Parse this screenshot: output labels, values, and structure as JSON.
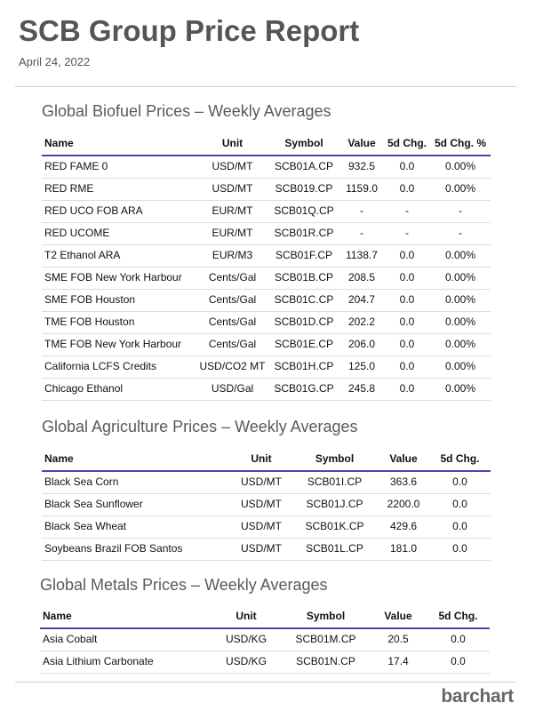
{
  "header": {
    "title": "SCB Group Price Report",
    "date": "April 24, 2022"
  },
  "biofuel": {
    "title": "Global Biofuel Prices – Weekly Averages",
    "columns": [
      "Name",
      "Unit",
      "Symbol",
      "Value",
      "5d Chg.",
      "5d Chg. %"
    ],
    "rows": [
      [
        "RED FAME 0",
        "USD/MT",
        "SCB01A.CP",
        "932.5",
        "0.0",
        "0.00%"
      ],
      [
        "RED RME",
        "USD/MT",
        "SCB019.CP",
        "1159.0",
        "0.0",
        "0.00%"
      ],
      [
        "RED UCO FOB ARA",
        "EUR/MT",
        "SCB01Q.CP",
        "-",
        "-",
        "-"
      ],
      [
        "RED UCOME",
        "EUR/MT",
        "SCB01R.CP",
        "-",
        "-",
        "-"
      ],
      [
        "T2 Ethanol ARA",
        "EUR/M3",
        "SCB01F.CP",
        "1138.7",
        "0.0",
        "0.00%"
      ],
      [
        "SME FOB New York Harbour",
        "Cents/Gal",
        "SCB01B.CP",
        "208.5",
        "0.0",
        "0.00%"
      ],
      [
        "SME FOB Houston",
        "Cents/Gal",
        "SCB01C.CP",
        "204.7",
        "0.0",
        "0.00%"
      ],
      [
        "TME FOB Houston",
        "Cents/Gal",
        "SCB01D.CP",
        "202.2",
        "0.0",
        "0.00%"
      ],
      [
        "TME FOB New York Harbour",
        "Cents/Gal",
        "SCB01E.CP",
        "206.0",
        "0.0",
        "0.00%"
      ],
      [
        "California LCFS Credits",
        "USD/CO2 MT",
        "SCB01H.CP",
        "125.0",
        "0.0",
        "0.00%"
      ],
      [
        "Chicago Ethanol",
        "USD/Gal",
        "SCB01G.CP",
        "245.8",
        "0.0",
        "0.00%"
      ]
    ]
  },
  "agriculture": {
    "title": "Global Agriculture Prices – Weekly Averages",
    "columns": [
      "Name",
      "Unit",
      "Symbol",
      "Value",
      "5d Chg."
    ],
    "rows": [
      [
        "Black Sea Corn",
        "USD/MT",
        "SCB01I.CP",
        "363.6",
        "0.0"
      ],
      [
        "Black Sea Sunflower",
        "USD/MT",
        "SCB01J.CP",
        "2200.0",
        "0.0"
      ],
      [
        "Black Sea Wheat",
        "USD/MT",
        "SCB01K.CP",
        "429.6",
        "0.0"
      ],
      [
        "Soybeans Brazil FOB Santos",
        "USD/MT",
        "SCB01L.CP",
        "181.0",
        "0.0"
      ]
    ]
  },
  "metals": {
    "title": "Global Metals Prices – Weekly Averages",
    "columns": [
      "Name",
      "Unit",
      "Symbol",
      "Value",
      "5d Chg."
    ],
    "rows": [
      [
        "Asia Cobalt",
        "USD/KG",
        "SCB01M.CP",
        "20.5",
        "0.0"
      ],
      [
        "Asia Lithium Carbonate",
        "USD/KG",
        "SCB01N.CP",
        "17.4",
        "0.0"
      ]
    ]
  },
  "footer": {
    "logo": "barchart"
  }
}
